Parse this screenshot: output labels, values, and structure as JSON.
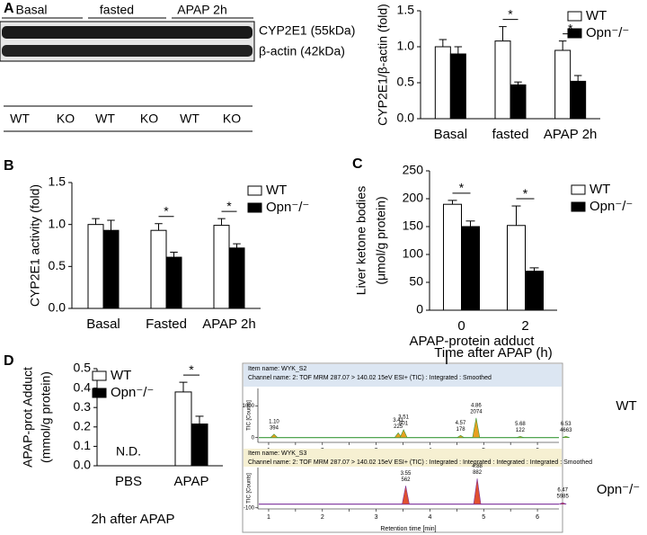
{
  "panel_labels": [
    "A",
    "B",
    "C",
    "D"
  ],
  "blot": {
    "groups": [
      "Basal",
      "fasted",
      "APAP 2h"
    ],
    "bands": [
      "CYP2E1 (55kDa)",
      "β-actin (42kDa)"
    ],
    "lanes": [
      "WT",
      "KO",
      "WT",
      "KO",
      "WT",
      "KO"
    ]
  },
  "chart_data": [
    {
      "type": "bar",
      "ylabel": [
        "CYP2E1/β-actin (fold)"
      ],
      "categories": [
        "Basal",
        "fasted",
        "APAP 2h"
      ],
      "series": [
        {
          "name": "WT",
          "color": "#ffffff",
          "values": [
            1.0,
            1.08,
            0.95
          ],
          "errors": [
            0.1,
            0.2,
            0.13
          ]
        },
        {
          "name": "Opn⁻/⁻",
          "color": "#000000",
          "values": [
            0.9,
            0.47,
            0.52
          ],
          "errors": [
            0.1,
            0.04,
            0.08
          ]
        }
      ],
      "ylim": [
        0,
        1.5
      ],
      "yticks": [
        {
          "value": 0,
          "label": "0.0"
        },
        0.5,
        {
          "value": 1,
          "label": "1.0"
        },
        1.5
      ],
      "significance": [
        null,
        "*",
        "*"
      ],
      "legend": "upper right"
    },
    {
      "type": "bar",
      "ylabel": [
        "CYP2E1 activity (fold)"
      ],
      "categories": [
        "Basal",
        "Fasted",
        "APAP 2h"
      ],
      "series": [
        {
          "name": "WT",
          "color": "#ffffff",
          "values": [
            1.0,
            0.93,
            0.99
          ],
          "errors": [
            0.07,
            0.08,
            0.08
          ]
        },
        {
          "name": "Opn⁻/⁻",
          "color": "#000000",
          "values": [
            0.93,
            0.61,
            0.72
          ],
          "errors": [
            0.12,
            0.06,
            0.05
          ]
        }
      ],
      "ylim": [
        0,
        1.5
      ],
      "yticks": [
        {
          "value": 0,
          "label": "0.0"
        },
        0.5,
        {
          "value": 1,
          "label": "1.0"
        },
        1.5
      ],
      "significance": [
        null,
        "*",
        "*"
      ],
      "legend": "right"
    },
    {
      "type": "bar",
      "ylabel": [
        "Liver  ketone bodies",
        "(μmol/g protein)"
      ],
      "xlabel": "Time after APAP (h)",
      "categories": [
        "0",
        "2"
      ],
      "series": [
        {
          "name": "WT",
          "color": "#ffffff",
          "values": [
            190,
            152
          ],
          "errors": [
            7,
            35
          ]
        },
        {
          "name": "Opn⁻/⁻",
          "color": "#000000",
          "values": [
            150,
            70
          ],
          "errors": [
            10,
            6
          ]
        }
      ],
      "ylim": [
        0,
        250
      ],
      "yticks": [
        0,
        50,
        100,
        150,
        200,
        250
      ],
      "significance": [
        "*",
        "*"
      ],
      "legend": "right"
    },
    {
      "type": "bar",
      "ylabel": [
        "APAP-prot Adduct",
        "(mmol/g protein)"
      ],
      "xlabel": "2h after APAP",
      "categories": [
        "PBS",
        "APAP"
      ],
      "series": [
        {
          "name": "WT",
          "color": "#ffffff",
          "values": [
            null,
            0.38
          ],
          "errors": [
            null,
            0.05
          ]
        },
        {
          "name": "Opn⁻/⁻",
          "color": "#000000",
          "values": [
            null,
            0.215
          ],
          "errors": [
            null,
            0.04
          ]
        }
      ],
      "ylim": [
        0,
        0.5
      ],
      "yticks": [
        {
          "value": 0,
          "label": "0.0"
        },
        0.1,
        0.2,
        0.3,
        0.4,
        0.5
      ],
      "significance": [
        null,
        "*"
      ],
      "annotations": [
        "N.D.",
        null
      ],
      "legend": "upper left"
    },
    {
      "type": "chromatogram",
      "item_name": "Item name: WYK_S2",
      "channel_name": "Channel name: 2: TOF MRM 287.07 > 140.02 15eV ESI+ (TIC) : Integrated : Smoothed",
      "ylabel": "TIC [Counts]",
      "label": "WT",
      "annotation": "APAP-protein adduct",
      "line_color": "#3a9a3a",
      "peak_color": "#e8a020",
      "header_color": "#dce6f2",
      "xlim": [
        0.8,
        6.4
      ],
      "xticks": [
        1,
        1.5,
        2,
        2.5,
        3,
        3.5,
        4,
        4.5,
        5,
        5.5,
        6
      ],
      "ylim": [
        -150,
        1550
      ],
      "yticks": [
        0,
        1000
      ],
      "peaks": {
        "x": [
          1.1,
          3.41,
          3.51,
          4.57,
          4.86,
          5.68,
          6.53
        ],
        "x_labels": [
          "1.10",
          "3.41",
          "3.51",
          "4.57",
          "4.86",
          "5.68",
          "6.53"
        ],
        "area": [
          394,
          225,
          601,
          178,
          2074,
          122,
          4663
        ],
        "values": [
          110,
          150,
          250,
          70,
          620,
          40,
          40
        ]
      }
    },
    {
      "type": "chromatogram",
      "item_name": "Item name: WYK_S3",
      "channel_name": "Channel name: 2: TOF MRM 287.07 > 140.02 15eV ESI+ (TIC) : Integrated : Integrated : Integrated : Integrated : Smoothed",
      "ylabel": "TIC [Counts]",
      "label": "Opn⁻/⁻",
      "xlabel": "Retention time [min]",
      "line_color": "#7a2f9a",
      "peak_color": "#e05030",
      "header_color": "#f6f0d2",
      "xlim": [
        0.8,
        6.4
      ],
      "xticks": [
        1,
        1.5,
        2,
        2.5,
        3,
        3.5,
        4,
        4.5,
        5,
        5.5,
        6
      ],
      "ylim": [
        -130,
        1000
      ],
      "yticks": [
        -100
      ],
      "peaks": {
        "x": [
          3.55,
          4.88,
          6.47
        ],
        "x_labels": [
          "3.55",
          "4.88",
          "6.47"
        ],
        "area": [
          562,
          882,
          5985
        ],
        "values": [
          500,
          700,
          40
        ]
      }
    }
  ]
}
